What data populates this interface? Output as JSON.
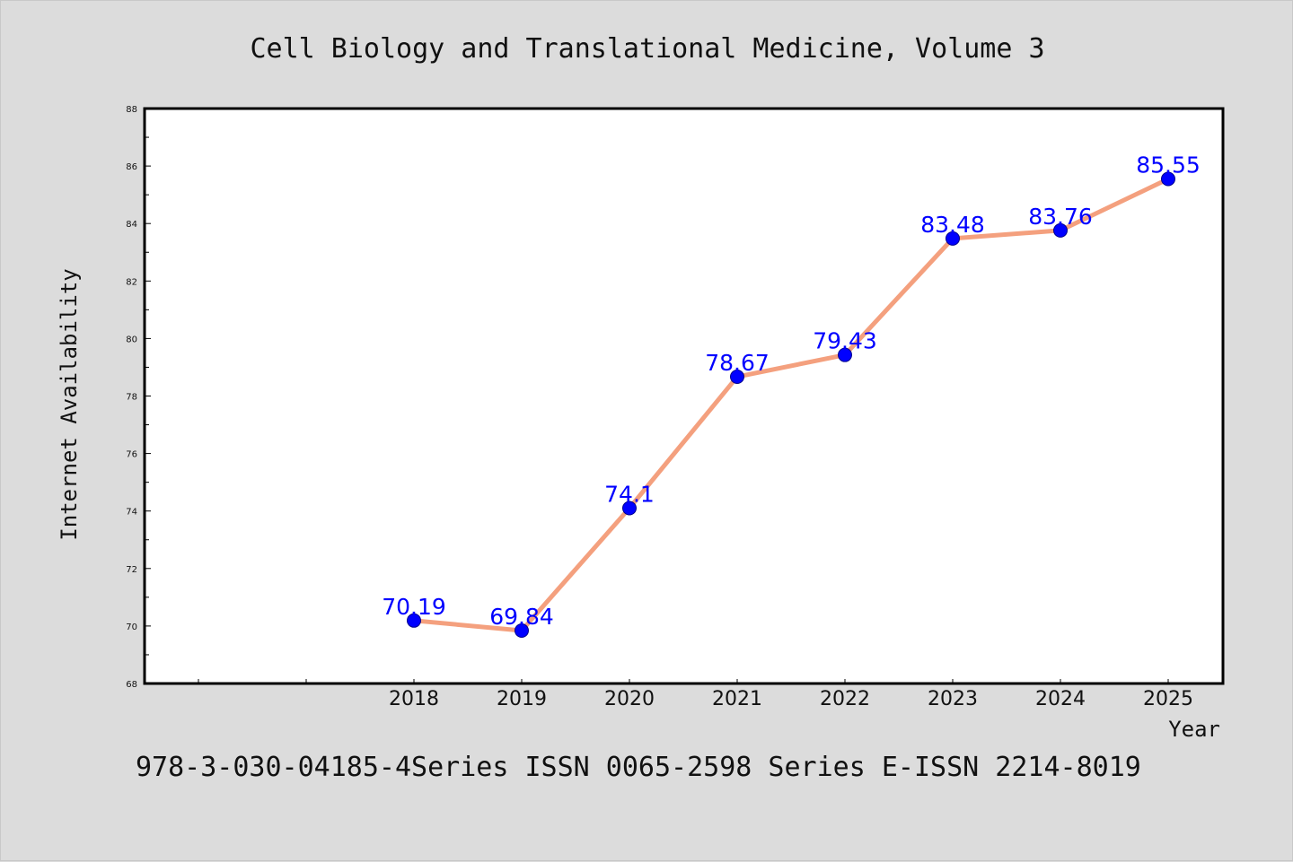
{
  "chart_data": {
    "type": "line",
    "title": "Cell Biology and Translational Medicine, Volume 3",
    "xlabel": "Year",
    "ylabel": "Internet Availability",
    "x": [
      "2018",
      "2019",
      "2020",
      "2021",
      "2022",
      "2023",
      "2024",
      "2025"
    ],
    "series": [
      {
        "values": [
          70.19,
          69.84,
          74.1,
          78.67,
          79.43,
          83.48,
          83.76,
          85.55
        ],
        "data_labels": [
          "70.19",
          "69.84",
          "74.1",
          "78.67",
          "79.43",
          "83.48",
          "83.76",
          "85.55"
        ]
      }
    ],
    "ylim": [
      68,
      88
    ],
    "yticks": [
      "68",
      "70",
      "72",
      "74",
      "76",
      "78",
      "80",
      "82",
      "84",
      "86",
      "88"
    ],
    "grid": false,
    "colors": {
      "line": "#f4a07e",
      "marker": "#0000ff",
      "data_label": "#0000ff",
      "axes": "#000000"
    }
  },
  "footer": {
    "text": "978-3-030-04185-4Series ISSN 0065-2598 Series E-ISSN 2214-8019"
  }
}
